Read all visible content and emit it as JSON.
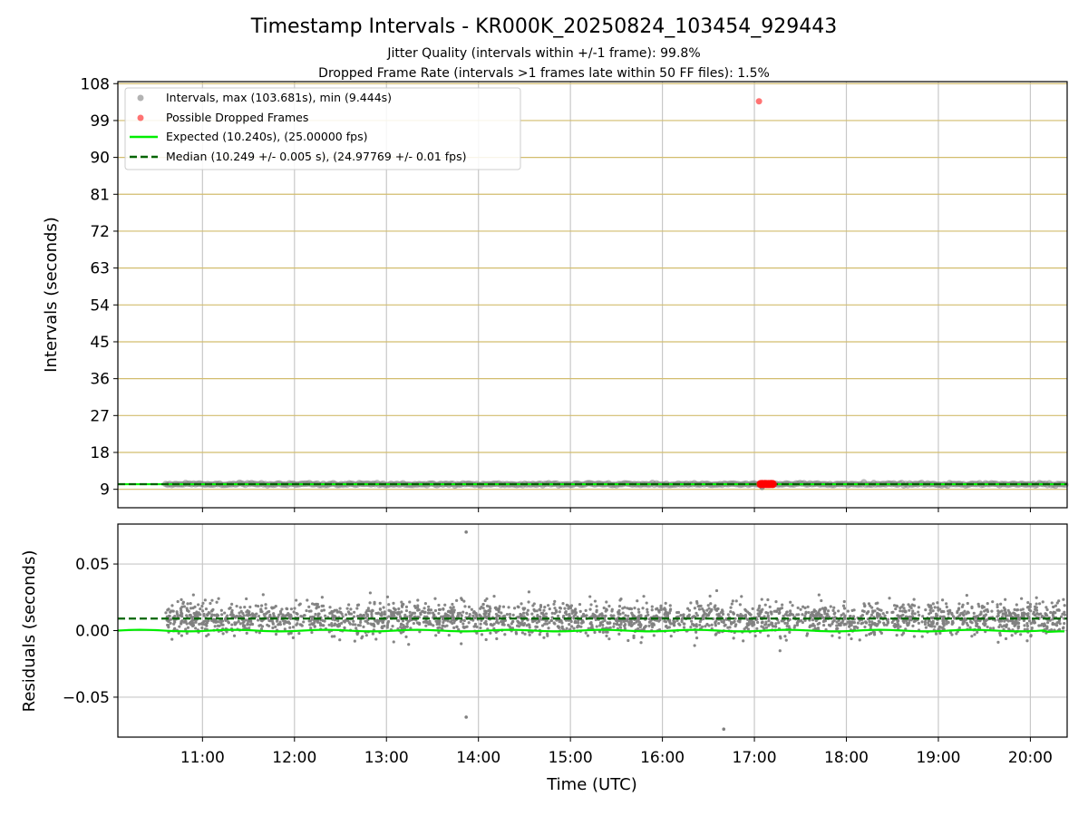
{
  "figure": {
    "title": "Timestamp Intervals - KR000K_20250824_103454_929443",
    "subtitle_1": "Jitter Quality (intervals within +/-1 frame): 99.8%",
    "subtitle_2": "Dropped Frame Rate (intervals >1 frames late within 50 FF files): 1.5%"
  },
  "colors": {
    "intervals": "#808080",
    "dropped": "#ff0000",
    "expected": "#00ee00",
    "median": "#006400",
    "grid_top": "#d2bd6e",
    "grid": "#c8c8c8"
  },
  "chart_data": [
    {
      "type": "scatter",
      "ylabel": "Intervals (seconds)",
      "xlabel": "",
      "ylim": [
        4.5,
        108.5
      ],
      "xlim_hours": [
        10.08,
        20.4
      ],
      "yticks": [
        9,
        18,
        27,
        36,
        45,
        54,
        63,
        72,
        81,
        90,
        99,
        108
      ],
      "xticks": [
        "11:00",
        "12:00",
        "13:00",
        "14:00",
        "15:00",
        "16:00",
        "17:00",
        "18:00",
        "19:00",
        "20:00"
      ],
      "grid": true,
      "legend_position": "top-left",
      "legend": [
        "Intervals, max (103.681s), min (9.444s)",
        "Possible Dropped Frames",
        "Expected (10.240s), (25.00000 fps)",
        "Median (10.249 +/- 0.005 s), (24.97769 +/- 0.01 fps)"
      ],
      "series": [
        {
          "name": "Intervals, max (103.681s), min (9.444s)",
          "x_start": "10:36",
          "x_end": "20:24",
          "typical_value": 10.249,
          "max": 103.681,
          "min": 9.444
        },
        {
          "name": "Possible Dropped Frames",
          "points": [
            {
              "x": "17:03",
              "y": 103.681
            },
            {
              "x": "17:04",
              "y": 10.28
            },
            {
              "x": "17:05",
              "y": 10.3
            },
            {
              "x": "17:06",
              "y": 10.28
            },
            {
              "x": "17:07",
              "y": 10.3
            },
            {
              "x": "17:08",
              "y": 10.28
            },
            {
              "x": "17:09",
              "y": 10.29
            },
            {
              "x": "17:10",
              "y": 10.28
            },
            {
              "x": "17:11",
              "y": 10.3
            },
            {
              "x": "17:12",
              "y": 10.28
            }
          ]
        },
        {
          "name": "Expected (10.240s), (25.00000 fps)",
          "value": 10.24
        },
        {
          "name": "Median (10.249 +/- 0.005 s), (24.97769 +/- 0.01 fps)",
          "value": 10.249
        }
      ]
    },
    {
      "type": "scatter",
      "ylabel": "Residuals (seconds)",
      "xlabel": "Time (UTC)",
      "ylim": [
        -0.08,
        0.08
      ],
      "xlim_hours": [
        10.08,
        20.4
      ],
      "yticks": [
        0.05,
        0.0,
        -0.05
      ],
      "ytick_labels": [
        "0.05",
        "0.00",
        "−0.05"
      ],
      "xticks": [
        "11:00",
        "12:00",
        "13:00",
        "14:00",
        "15:00",
        "16:00",
        "17:00",
        "18:00",
        "19:00",
        "20:00"
      ],
      "grid": true,
      "series": [
        {
          "name": "Residuals",
          "x_start": "10:36",
          "x_end": "20:24",
          "center": 0.009,
          "spread": 0.006,
          "outliers": [
            {
              "x": "13:52",
              "y": 0.074
            },
            {
              "x": "13:52",
              "y": -0.065
            },
            {
              "x": "16:40",
              "y": -0.074
            }
          ]
        },
        {
          "name": "Expected (10.240s), (25.00000 fps)",
          "value": 0.0
        },
        {
          "name": "Median (10.249 +/- 0.005 s), (24.97769 +/- 0.01 fps)",
          "value": 0.009
        }
      ]
    }
  ]
}
